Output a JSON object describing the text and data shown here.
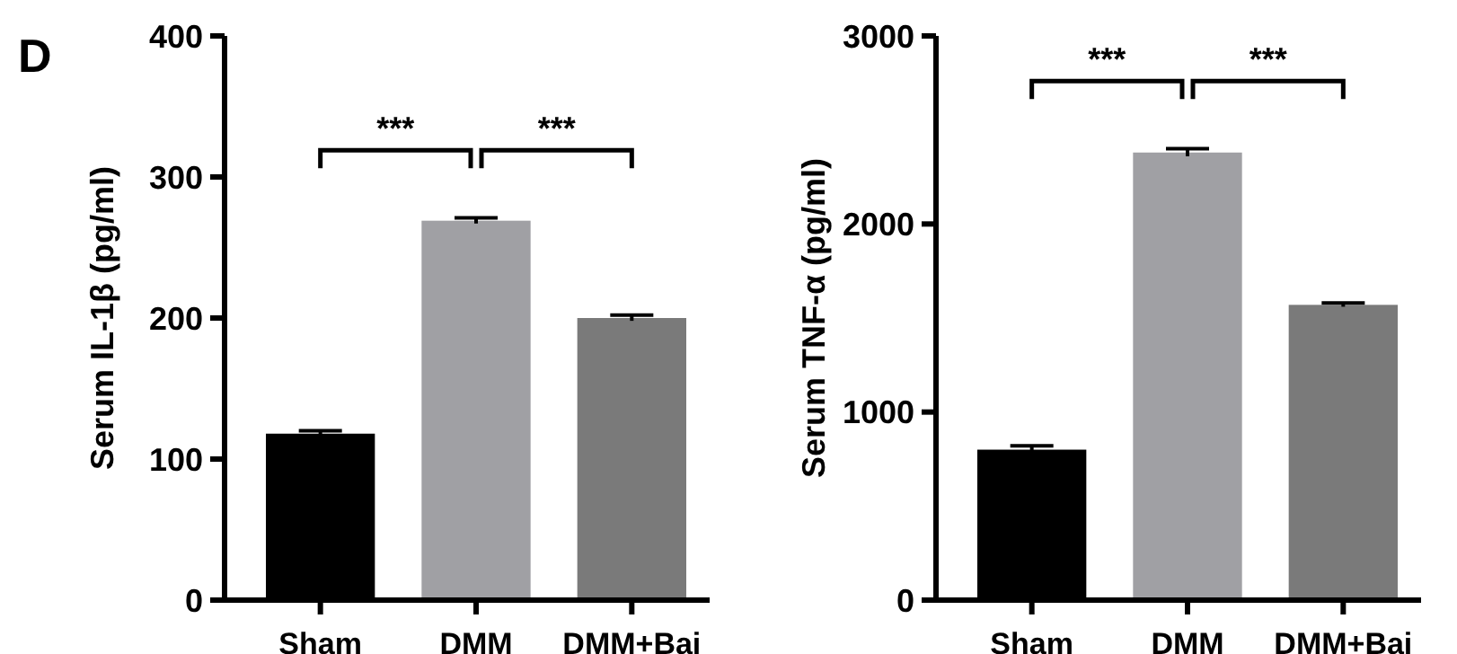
{
  "chart_data": [
    {
      "type": "bar",
      "title": "D",
      "ylabel": "Serum IL-1β (pg/ml)",
      "categories": [
        "Sham",
        "DMM",
        "DMM+Bai"
      ],
      "values": [
        118,
        269,
        200
      ],
      "errors": [
        2,
        2,
        2
      ],
      "colors": [
        "#000000",
        "#a0a0a4",
        "#7a7a7a"
      ],
      "ylim": [
        0,
        400
      ],
      "yticks": [
        0,
        100,
        200,
        300,
        400
      ],
      "annotations": [
        "***",
        "***"
      ]
    },
    {
      "type": "bar",
      "ylabel": "Serum TNF-α (pg/ml)",
      "categories": [
        "Sham",
        "DMM",
        "DMM+Bai"
      ],
      "values": [
        800,
        2380,
        1570
      ],
      "errors": [
        20,
        20,
        10
      ],
      "colors": [
        "#000000",
        "#a0a0a4",
        "#7a7a7a"
      ],
      "ylim": [
        0,
        3000
      ],
      "yticks": [
        0,
        1000,
        2000,
        3000
      ],
      "annotations": [
        "***",
        "***"
      ]
    }
  ]
}
